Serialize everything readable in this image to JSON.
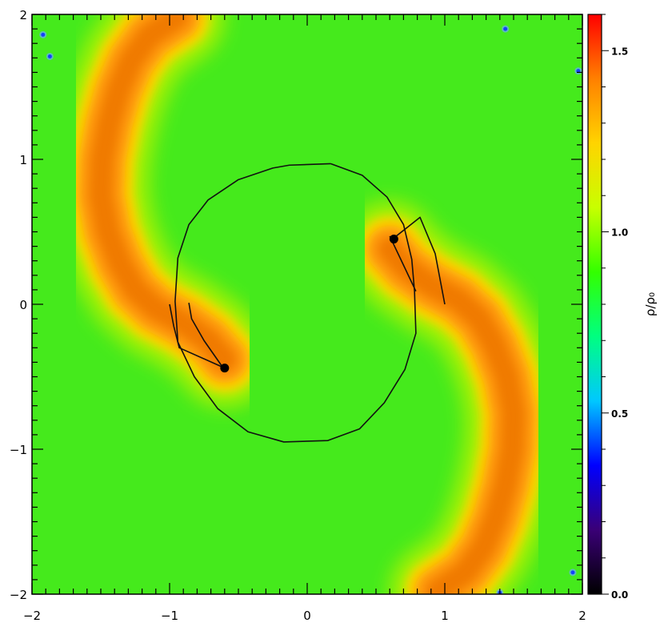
{
  "chart_data": {
    "type": "heatmap",
    "title": "",
    "xlabel": "",
    "ylabel": "",
    "xlim": [
      -2,
      2
    ],
    "ylim": [
      -2,
      2
    ],
    "x_ticks": [
      "−2",
      "−1",
      "0",
      "1",
      "2"
    ],
    "y_ticks": [
      "−2",
      "−1",
      "0",
      "1",
      "2"
    ],
    "x_tick_values": [
      -2,
      -1,
      0,
      1,
      2
    ],
    "y_tick_values": [
      -2,
      -1,
      0,
      1,
      2
    ],
    "colorbar": {
      "label": "ρ/ρ₀",
      "range": [
        0.0,
        1.6
      ],
      "ticks": [
        "0.0",
        "0.5",
        "1.0",
        "1.5"
      ],
      "tick_values": [
        0.0,
        0.5,
        1.0,
        1.5
      ],
      "colors": [
        "#000000",
        "#3a0077",
        "#0000ff",
        "#00c8ff",
        "#00ff80",
        "#33ff00",
        "#c8ff00",
        "#ffd400",
        "#ff8000",
        "#ff0000"
      ]
    },
    "background_density": 1.0,
    "series": [
      {
        "kind": "orbit",
        "points": [
          [
            0.17,
            0.97
          ],
          [
            0.4,
            0.89
          ],
          [
            0.58,
            0.74
          ],
          [
            0.7,
            0.55
          ],
          [
            0.76,
            0.31
          ],
          [
            0.78,
            0.09
          ],
          [
            0.79,
            -0.2
          ],
          [
            0.71,
            -0.45
          ],
          [
            0.56,
            -0.68
          ],
          [
            0.38,
            -0.86
          ],
          [
            0.15,
            -0.94
          ],
          [
            -0.17,
            -0.95
          ],
          [
            -0.43,
            -0.88
          ],
          [
            -0.65,
            -0.72
          ],
          [
            -0.82,
            -0.5
          ],
          [
            -0.94,
            -0.26
          ],
          [
            -0.96,
            0.02
          ],
          [
            -0.94,
            0.32
          ],
          [
            -0.86,
            0.55
          ],
          [
            -0.72,
            0.72
          ],
          [
            -0.5,
            0.86
          ],
          [
            -0.25,
            0.94
          ],
          [
            -0.13,
            0.96
          ],
          [
            0.17,
            0.97
          ]
        ]
      },
      {
        "kind": "trail",
        "points": [
          [
            0.6,
            0.47
          ],
          [
            0.7,
            0.27
          ],
          [
            0.79,
            0.09
          ]
        ]
      },
      {
        "kind": "trail",
        "points": [
          [
            0.62,
            0.45
          ],
          [
            0.82,
            0.6
          ],
          [
            0.93,
            0.35
          ],
          [
            1.0,
            0.0
          ]
        ]
      },
      {
        "kind": "trail",
        "points": [
          [
            -0.61,
            -0.44
          ],
          [
            -0.75,
            -0.25
          ],
          [
            -0.84,
            -0.1
          ],
          [
            -0.86,
            0.01
          ]
        ]
      },
      {
        "kind": "trail",
        "points": [
          [
            -0.6,
            -0.44
          ],
          [
            -0.93,
            -0.3
          ],
          [
            -0.97,
            -0.15
          ],
          [
            -1.0,
            0.0
          ]
        ]
      },
      {
        "kind": "body",
        "points": [
          [
            0.63,
            0.45
          ],
          [
            -0.6,
            -0.44
          ]
        ]
      },
      {
        "kind": "blue-markers",
        "points": [
          [
            -1.92,
            1.86
          ],
          [
            -1.87,
            1.71
          ],
          [
            1.44,
            1.9
          ],
          [
            1.97,
            1.61
          ],
          [
            1.93,
            -1.85
          ],
          [
            1.4,
            -1.99
          ]
        ]
      }
    ],
    "high_density_arms": [
      {
        "points": [
          [
            0.6,
            0.38
          ],
          [
            0.72,
            0.25
          ],
          [
            0.9,
            0.13
          ],
          [
            1.1,
            0.03
          ],
          [
            1.25,
            -0.1
          ],
          [
            1.36,
            -0.28
          ],
          [
            1.45,
            -0.5
          ],
          [
            1.5,
            -0.75
          ],
          [
            1.49,
            -1.0
          ],
          [
            1.44,
            -1.25
          ],
          [
            1.37,
            -1.48
          ],
          [
            1.28,
            -1.68
          ],
          [
            1.15,
            -1.85
          ],
          [
            0.95,
            -1.98
          ]
        ]
      },
      {
        "points": [
          [
            -0.6,
            -0.38
          ],
          [
            -0.72,
            -0.25
          ],
          [
            -0.9,
            -0.13
          ],
          [
            -1.1,
            -0.03
          ],
          [
            -1.25,
            0.1
          ],
          [
            -1.36,
            0.28
          ],
          [
            -1.45,
            0.5
          ],
          [
            -1.5,
            0.75
          ],
          [
            -1.49,
            1.0
          ],
          [
            -1.44,
            1.25
          ],
          [
            -1.37,
            1.48
          ],
          [
            -1.28,
            1.68
          ],
          [
            -1.15,
            1.85
          ],
          [
            -0.95,
            1.98
          ]
        ]
      }
    ],
    "grid": false,
    "legend": "none"
  }
}
